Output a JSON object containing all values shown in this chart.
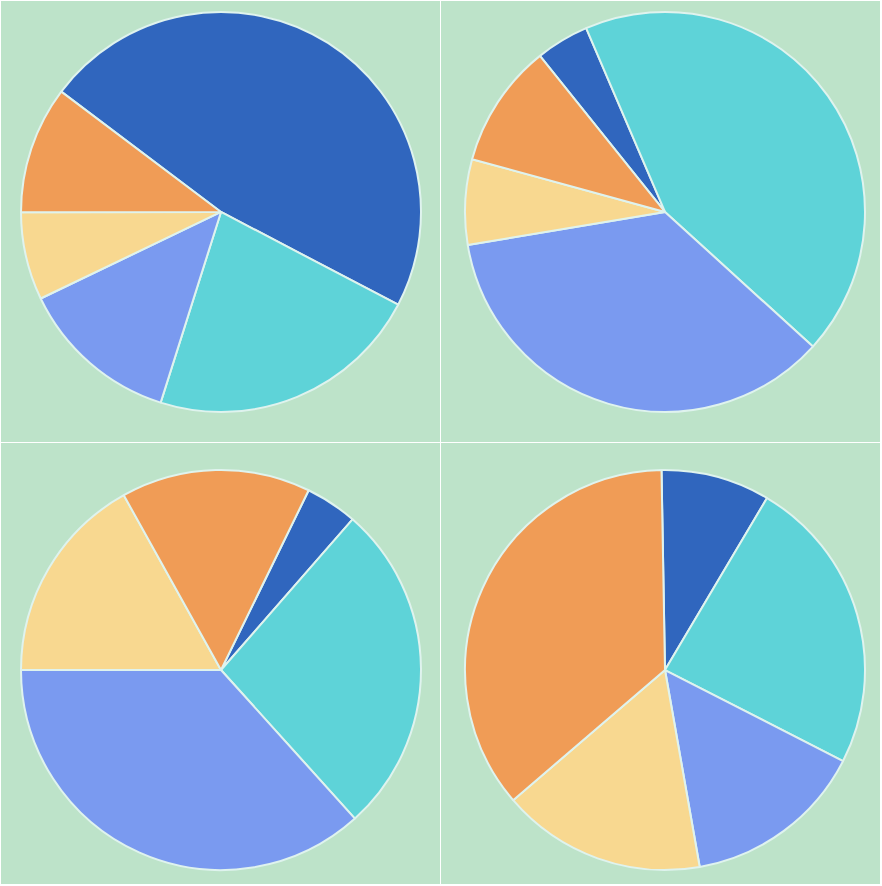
{
  "chart_data": [
    {
      "type": "pie",
      "categories": [
        null,
        null,
        null,
        null,
        null
      ],
      "values": [
        47.4,
        22.2,
        13,
        7.1,
        10.3
      ],
      "colors": [
        "#3066be",
        "#5ed3d8",
        "#7a9af0",
        "#f8d890",
        "#f09c56"
      ]
    },
    {
      "type": "pie",
      "categories": [
        null,
        null,
        null,
        null,
        null
      ],
      "values": [
        4.3,
        43.2,
        35.6,
        6.9,
        10
      ],
      "colors": [
        "#3066be",
        "#5ed3d8",
        "#7a9af0",
        "#f8d890",
        "#f09c56"
      ]
    },
    {
      "type": "pie",
      "categories": [
        null,
        null,
        null,
        null,
        null
      ],
      "values": [
        4.2,
        26.9,
        36.7,
        16.9,
        15.3
      ],
      "colors": [
        "#3066be",
        "#5ed3d8",
        "#7a9af0",
        "#f8d890",
        "#f09c56"
      ]
    },
    {
      "type": "pie",
      "categories": [
        null,
        null,
        null,
        null,
        null
      ],
      "values": [
        8.8,
        24,
        14.7,
        16.5,
        36
      ],
      "colors": [
        "#3066be",
        "#5ed3d8",
        "#7a9af0",
        "#f8d890",
        "#f09c56"
      ]
    }
  ]
}
